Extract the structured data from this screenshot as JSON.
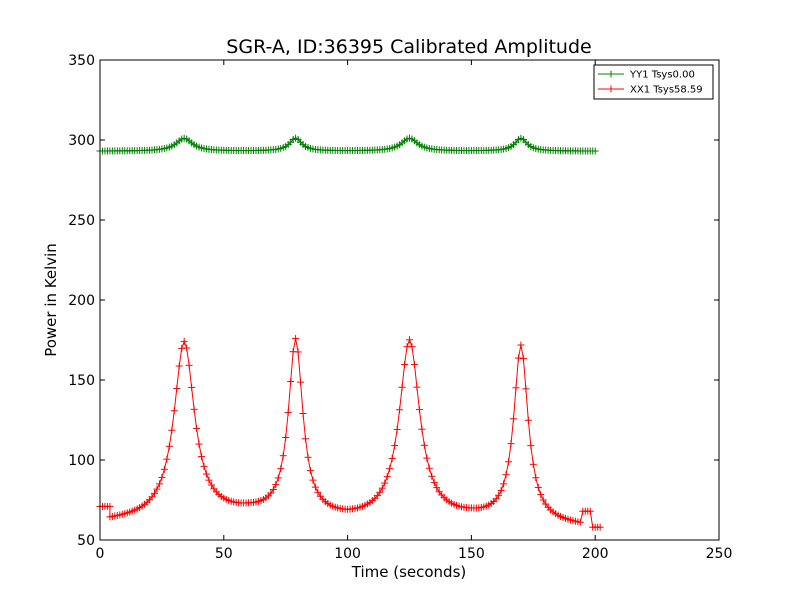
{
  "chart_data": {
    "type": "line",
    "title": "SGR-A, ID:36395 Calibrated Amplitude",
    "xlabel": "Time (seconds)",
    "ylabel": "Power in Kelvin",
    "xlim": [
      0,
      250
    ],
    "ylim": [
      50,
      350
    ],
    "xticks": [
      0,
      50,
      100,
      150,
      200,
      250
    ],
    "yticks": [
      50,
      100,
      150,
      200,
      250,
      300,
      350
    ],
    "grid": false,
    "legend_position": "top-right",
    "series": [
      {
        "name": "YY1 Tsys0.00",
        "color": "#008000",
        "marker": "+",
        "generator": {
          "x_start": 0,
          "x_end": 200,
          "step": 1,
          "baseline": 293,
          "peaks": [
            {
              "center": 34,
              "height": 8,
              "width": 4
            },
            {
              "center": 79,
              "height": 8,
              "width": 3
            },
            {
              "center": 125,
              "height": 8,
              "width": 4
            },
            {
              "center": 170,
              "height": 8,
              "width": 3
            }
          ]
        }
      },
      {
        "name": "XX1 Tsys58.59",
        "color": "#ff0000",
        "marker": "+",
        "segments": [
          {
            "x": [
              0,
              1,
              2,
              3,
              4
            ],
            "y": [
              71,
              71,
              71,
              71,
              71
            ]
          },
          {
            "x": [
              195,
              196,
              197,
              198
            ],
            "y": [
              68,
              68,
              68,
              68
            ]
          },
          {
            "x": [
              199,
              200,
              201,
              202
            ],
            "y": [
              58,
              58,
              58,
              58
            ]
          }
        ],
        "generator": {
          "x_start": 4,
          "x_end": 194,
          "step": 1,
          "baseline_points": [
            [
              4,
              61
            ],
            [
              20,
              62
            ],
            [
              60,
              65
            ],
            [
              100,
              61
            ],
            [
              150,
              62
            ],
            [
              194,
              58
            ]
          ],
          "peaks": [
            {
              "center": 34,
              "height": 110,
              "width": 5
            },
            {
              "center": 79,
              "height": 110,
              "width": 3.5
            },
            {
              "center": 125,
              "height": 112,
              "width": 5
            },
            {
              "center": 170,
              "height": 110,
              "width": 3.5
            }
          ]
        }
      }
    ]
  }
}
